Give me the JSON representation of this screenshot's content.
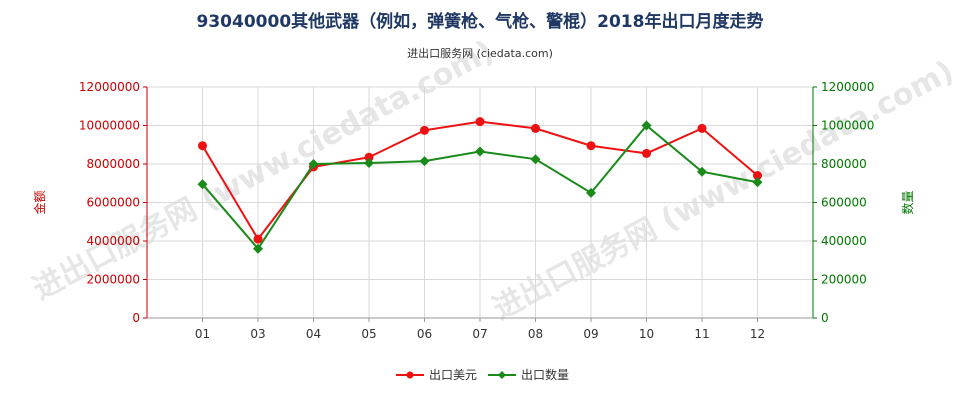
{
  "chart_data": {
    "type": "line",
    "title": "93040000其他武器（例如，弹簧枪、气枪、警棍）2018年出口月度走势",
    "subtitle": "进出口服务网 (ciedata.com)",
    "watermark": "进出口服务网 (www.ciedata.com)",
    "categories": [
      "01",
      "03",
      "04",
      "05",
      "06",
      "07",
      "08",
      "09",
      "10",
      "11",
      "12"
    ],
    "y_left": {
      "label": "金额",
      "ylim": [
        0,
        12000000
      ],
      "ticks": [
        "0",
        "2000000",
        "4000000",
        "6000000",
        "8000000",
        "10000000",
        "12000000"
      ],
      "color": "#cc0000"
    },
    "y_right": {
      "label": "数量",
      "ylim": [
        0,
        1200000
      ],
      "ticks": [
        "0",
        "200000",
        "400000",
        "600000",
        "800000",
        "1000000",
        "1200000"
      ],
      "color": "#007700"
    },
    "grid": true,
    "legend_position": "bottom",
    "series": [
      {
        "name": "出口美元",
        "axis": "left",
        "color": "#ee1111",
        "marker": "circle",
        "values": [
          8950000,
          4100000,
          7850000,
          8350000,
          9750000,
          10200000,
          9850000,
          8950000,
          8550000,
          9850000,
          7400000
        ]
      },
      {
        "name": "出口数量",
        "axis": "right",
        "color": "#1a8a1a",
        "marker": "diamond",
        "values": [
          695000,
          360000,
          800000,
          805000,
          815000,
          865000,
          825000,
          650000,
          1000000,
          760000,
          705000
        ]
      }
    ]
  }
}
